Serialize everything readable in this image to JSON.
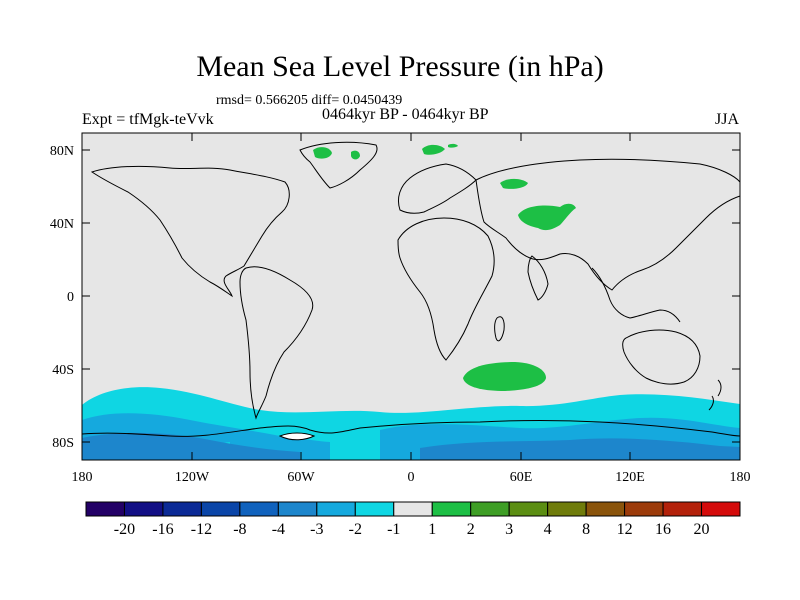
{
  "title": "Mean Sea Level Pressure (in hPa)",
  "stats": "rmsd= 0.566205 diff= 0.0450439",
  "period": "0464kyr BP - 0464kyr BP",
  "expt": "Expt = tfMgk-teVvk",
  "season": "JJA",
  "axes": {
    "lat_ticks": [
      "80N",
      "40N",
      "0",
      "40S",
      "80S"
    ],
    "lon_ticks": [
      "180",
      "120W",
      "60W",
      "0",
      "60E",
      "120E",
      "180"
    ]
  },
  "colorbar": {
    "colors": [
      "#230066",
      "#120f85",
      "#0b2a96",
      "#0a45a8",
      "#1062bd",
      "#1d86cc",
      "#15a9de",
      "#0fd6e3",
      "#e6e6e6",
      "#1dbf45",
      "#3e9e25",
      "#5b8e12",
      "#6f7c0b",
      "#8a540b",
      "#9c3b0a",
      "#b3210a",
      "#d40b0b"
    ],
    "labels": [
      "-20",
      "-16",
      "-12",
      "-8",
      "-4",
      "-3",
      "-2",
      "-1",
      "1",
      "2",
      "3",
      "4",
      "8",
      "12",
      "16",
      "20"
    ]
  },
  "legend_colors": {
    "land_background": "#e6e6e6",
    "coast": "#000000"
  },
  "anomaly_regions": [
    {
      "name": "Greenland west",
      "lon": -44,
      "lat": 86,
      "level": "1 to 2"
    },
    {
      "name": "Greenland east",
      "lon": -25,
      "lat": 85,
      "level": "1 to 2"
    },
    {
      "name": "Barents Sea",
      "lon": 35,
      "lat": 85,
      "level": "1 to 2"
    },
    {
      "name": "Western Siberia",
      "lon": 57,
      "lat": 65,
      "level": "1 to 2"
    },
    {
      "name": "Central Asia",
      "lon": 72,
      "lat": 44,
      "level": "1 to 2"
    },
    {
      "name": "South Indian Ocean",
      "lon": 52,
      "lat": -44,
      "level": "1 to 2"
    },
    {
      "name": "Southern Ocean belt",
      "lat_range": [
        -65,
        -90
      ],
      "level": "-2 to -1"
    },
    {
      "name": "Southern Ocean inner",
      "lat_range": [
        -75,
        -90
      ],
      "level": "-3 to -2"
    }
  ]
}
